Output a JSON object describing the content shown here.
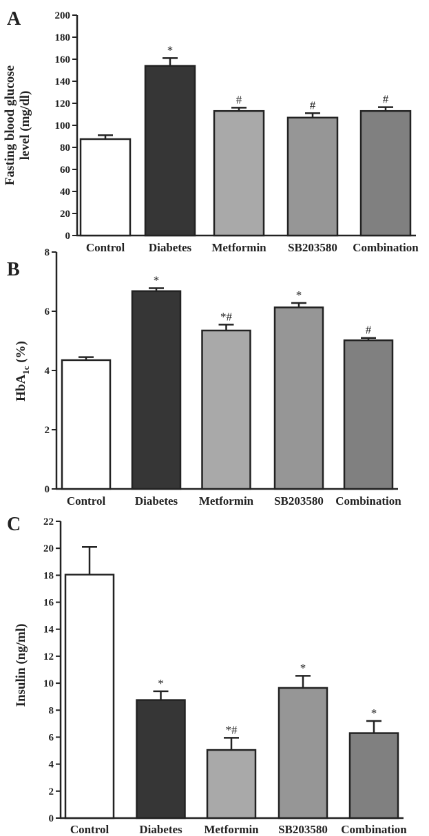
{
  "chart_data": [
    {
      "type": "bar",
      "panel": "A",
      "title": "",
      "xlabel": "",
      "ylabel": "Fasting blood glucose level (mg/dl)",
      "ylabel_lines": [
        "Fasting blood glucose",
        "level (mg/dl)"
      ],
      "ylim": [
        0,
        200
      ],
      "yticks": [
        0,
        20,
        40,
        60,
        80,
        100,
        120,
        140,
        160,
        180,
        200
      ],
      "categories": [
        "Control",
        "Diabetes",
        "Metformin",
        "SB203580",
        "Combination"
      ],
      "values": [
        87.5,
        154,
        113,
        107,
        113
      ],
      "errors": [
        3.5,
        7,
        3,
        4,
        3.5
      ],
      "annotations": [
        "",
        "*",
        "#",
        "#",
        "#"
      ],
      "colors": [
        "#ffffff",
        "#363636",
        "#a9a9a9",
        "#969696",
        "#808080"
      ],
      "grid": false
    },
    {
      "type": "bar",
      "panel": "B",
      "title": "",
      "xlabel": "",
      "ylabel": "HbA1c (%)",
      "ylabel_main": "HbA",
      "ylabel_sub": "1c",
      "ylabel_tail": " (%)",
      "ylim": [
        0,
        8
      ],
      "yticks": [
        0,
        2,
        4,
        6,
        8
      ],
      "categories": [
        "Control",
        "Diabetes",
        "Metformin",
        "SB203580",
        "Combination"
      ],
      "values": [
        4.35,
        6.68,
        5.35,
        6.13,
        5.02
      ],
      "errors": [
        0.1,
        0.1,
        0.2,
        0.15,
        0.08
      ],
      "annotations": [
        "",
        "*",
        "*#",
        "*",
        "#"
      ],
      "colors": [
        "#ffffff",
        "#363636",
        "#a9a9a9",
        "#969696",
        "#808080"
      ],
      "grid": false
    },
    {
      "type": "bar",
      "panel": "C",
      "title": "",
      "xlabel": "",
      "ylabel": "Insulin (ng/ml)",
      "ylim": [
        0,
        22
      ],
      "yticks": [
        0,
        2,
        4,
        6,
        8,
        10,
        12,
        14,
        16,
        18,
        20,
        22
      ],
      "categories": [
        "Control",
        "Diabetes",
        "Metformin",
        "SB203580",
        "Combination"
      ],
      "values": [
        18.05,
        8.75,
        5.05,
        9.65,
        6.3
      ],
      "errors": [
        2.05,
        0.65,
        0.9,
        0.9,
        0.9
      ],
      "annotations": [
        "",
        "*",
        "*#",
        "*",
        "*"
      ],
      "colors": [
        "#ffffff",
        "#363636",
        "#a9a9a9",
        "#969696",
        "#808080"
      ],
      "grid": false
    }
  ]
}
